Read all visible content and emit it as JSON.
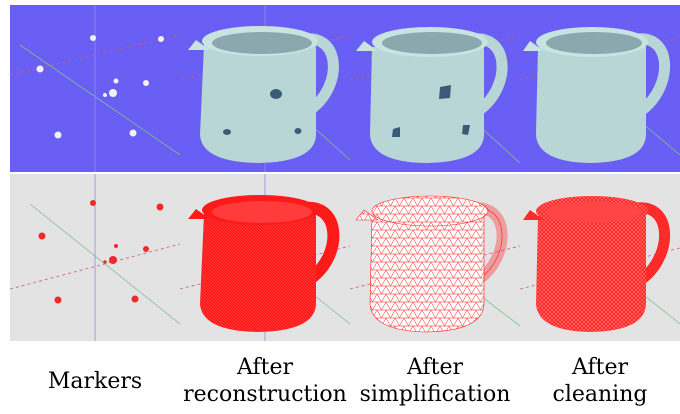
{
  "captions": {
    "col0": [
      "Markers"
    ],
    "col1": [
      "After",
      "reconstruction"
    ],
    "col2": [
      "After",
      "simplification"
    ],
    "col3": [
      "After",
      "cleaning"
    ]
  },
  "colors": {
    "top_background": "#6a5ff5",
    "bottom_background": "#e3e3e3",
    "mesh_surface": "#b9d6d6",
    "wireframe": "#ff1a1a",
    "marker_top": "#f2f2f2",
    "marker_bottom": "#ef2a2a",
    "axis_red": "#c75b7a",
    "axis_green": "#7fbf8f",
    "axis_blue": "#8e8ee0"
  },
  "marker_count": 9
}
